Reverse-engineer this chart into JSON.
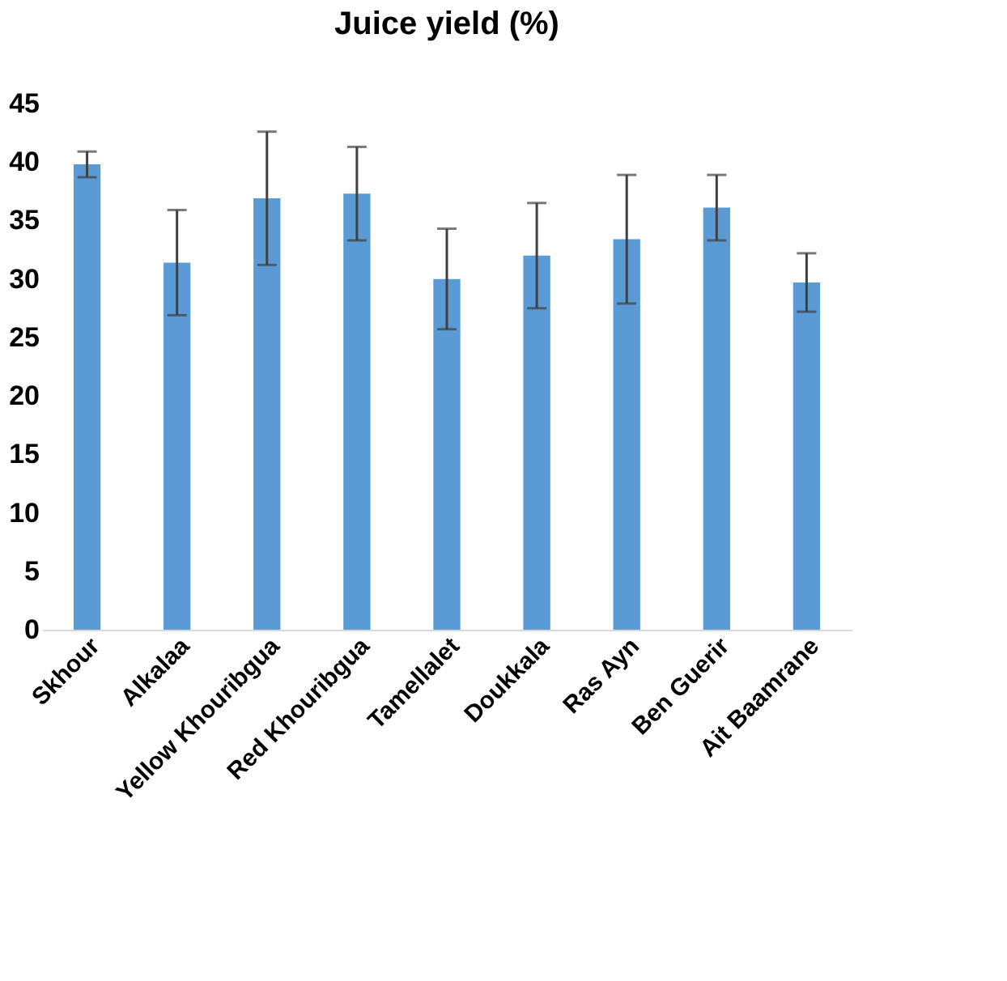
{
  "chart_data": {
    "type": "bar",
    "title": "Juice yield (%)",
    "categories": [
      "Skhour",
      "Alkalaa",
      "Yellow Khouribgua",
      "Red Khouribgua",
      "Tamellalet",
      "Doukkala",
      "Ras Ayn",
      "Ben Guerir",
      "Ait Baamrane"
    ],
    "values": [
      39.8,
      31.4,
      36.9,
      37.3,
      30.0,
      32.0,
      33.4,
      36.1,
      29.7
    ],
    "errors": [
      1.1,
      4.5,
      5.7,
      4.0,
      4.3,
      4.5,
      5.5,
      2.8,
      2.5
    ],
    "color": "#5b9bd5",
    "ylim": [
      0,
      45
    ],
    "yticks": [
      0,
      5,
      10,
      15,
      20,
      25,
      30,
      35,
      40,
      45
    ],
    "grid": false
  }
}
